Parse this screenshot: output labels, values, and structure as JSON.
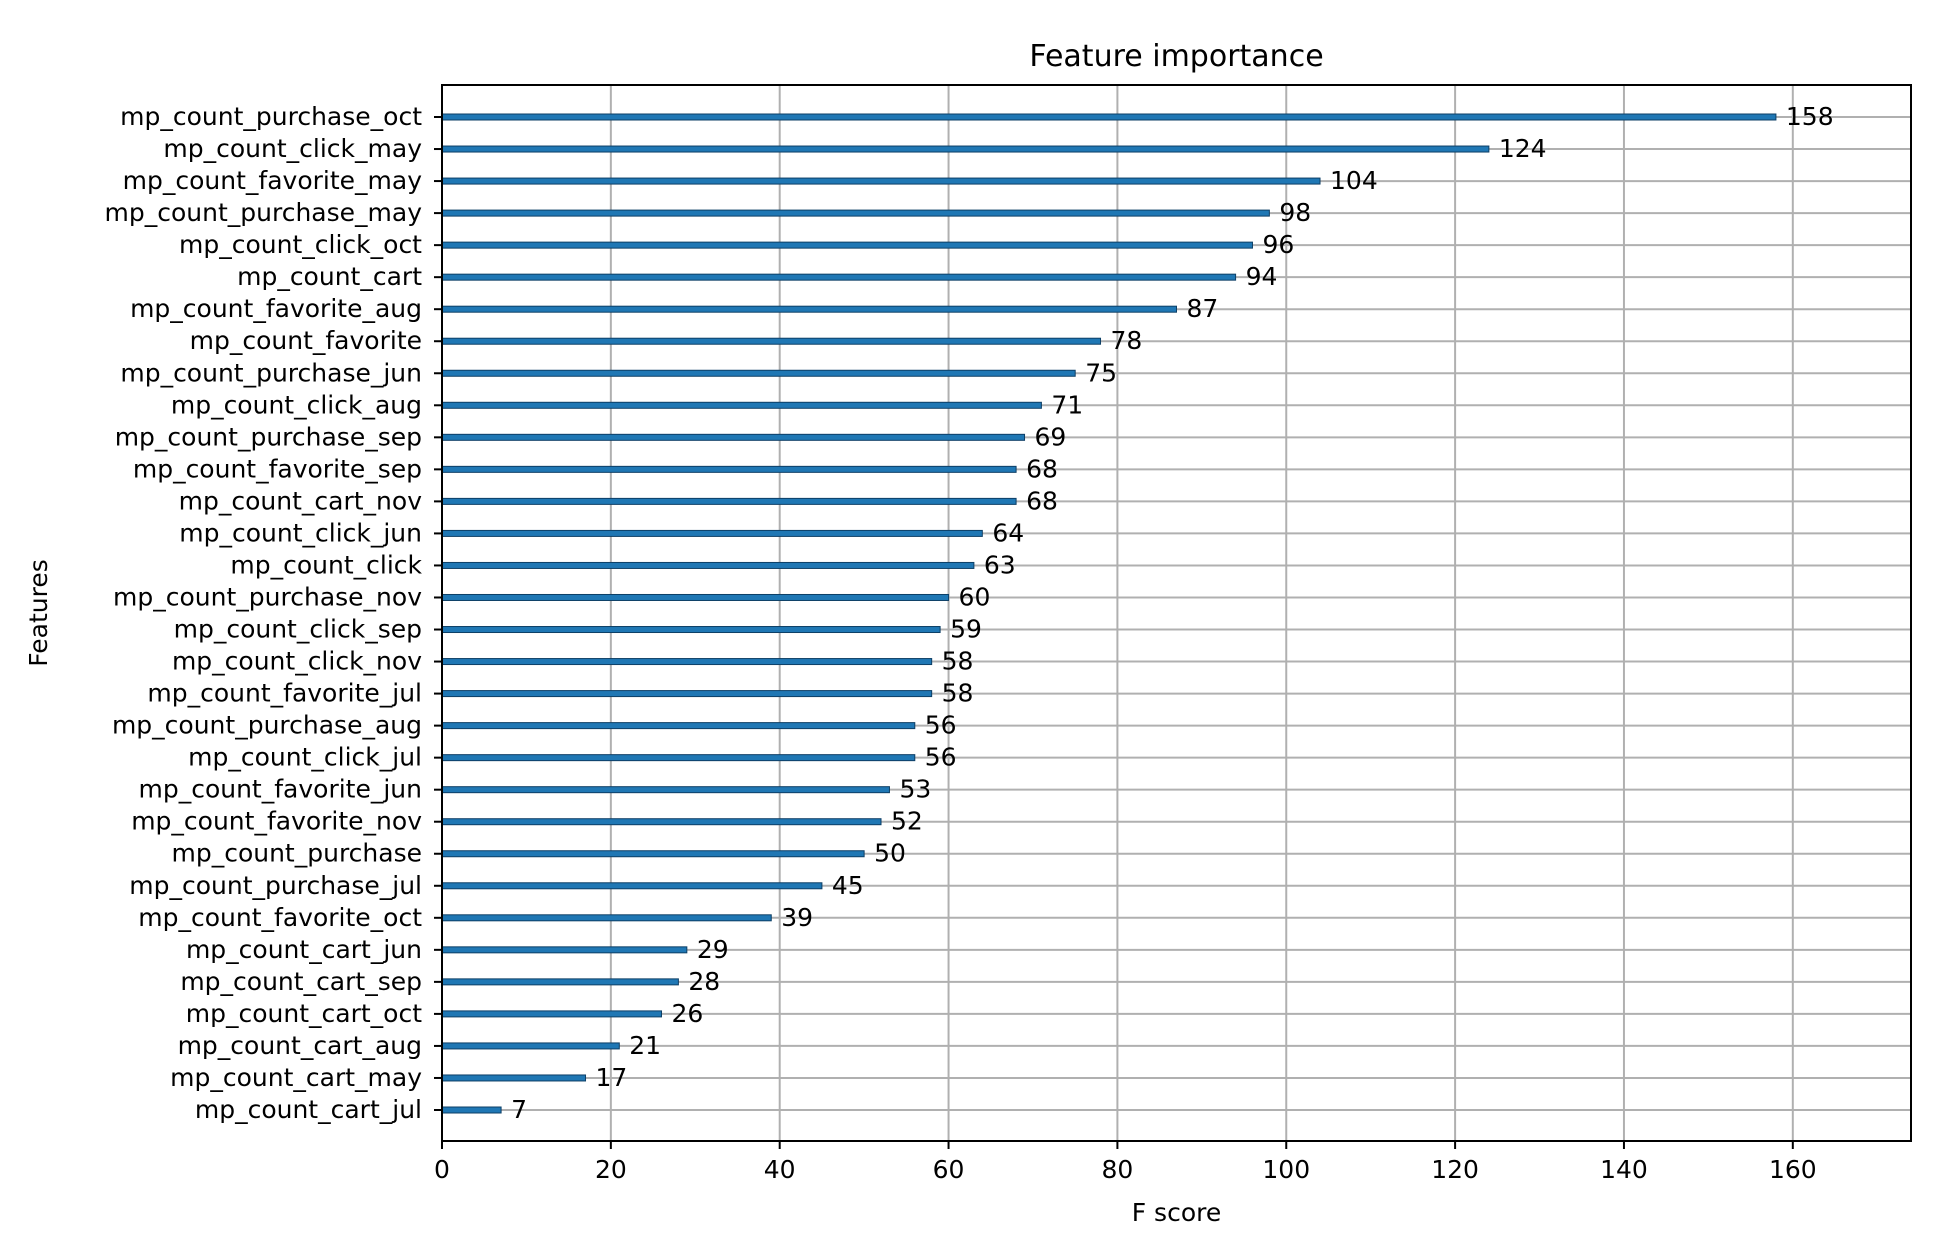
{
  "chart_data": {
    "type": "bar",
    "orientation": "horizontal",
    "title": "Feature importance",
    "xlabel": "F score",
    "ylabel": "Features",
    "xlim": [
      0,
      174
    ],
    "xticks": [
      0,
      20,
      40,
      60,
      80,
      100,
      120,
      140,
      160
    ],
    "grid": true,
    "bar_color": "#1f77b4",
    "categories": [
      "mp_count_purchase_oct",
      "mp_count_click_may",
      "mp_count_favorite_may",
      "mp_count_purchase_may",
      "mp_count_click_oct",
      "mp_count_cart",
      "mp_count_favorite_aug",
      "mp_count_favorite",
      "mp_count_purchase_jun",
      "mp_count_click_aug",
      "mp_count_purchase_sep",
      "mp_count_favorite_sep",
      "mp_count_cart_nov",
      "mp_count_click_jun",
      "mp_count_click",
      "mp_count_purchase_nov",
      "mp_count_click_sep",
      "mp_count_click_nov",
      "mp_count_favorite_jul",
      "mp_count_purchase_aug",
      "mp_count_click_jul",
      "mp_count_favorite_jun",
      "mp_count_favorite_nov",
      "mp_count_purchase",
      "mp_count_purchase_jul",
      "mp_count_favorite_oct",
      "mp_count_cart_jun",
      "mp_count_cart_sep",
      "mp_count_cart_oct",
      "mp_count_cart_aug",
      "mp_count_cart_may",
      "mp_count_cart_jul"
    ],
    "values": [
      158,
      124,
      104,
      98,
      96,
      94,
      87,
      78,
      75,
      71,
      69,
      68,
      68,
      64,
      63,
      60,
      59,
      58,
      58,
      56,
      56,
      53,
      52,
      50,
      45,
      39,
      29,
      28,
      26,
      21,
      17,
      7
    ]
  }
}
